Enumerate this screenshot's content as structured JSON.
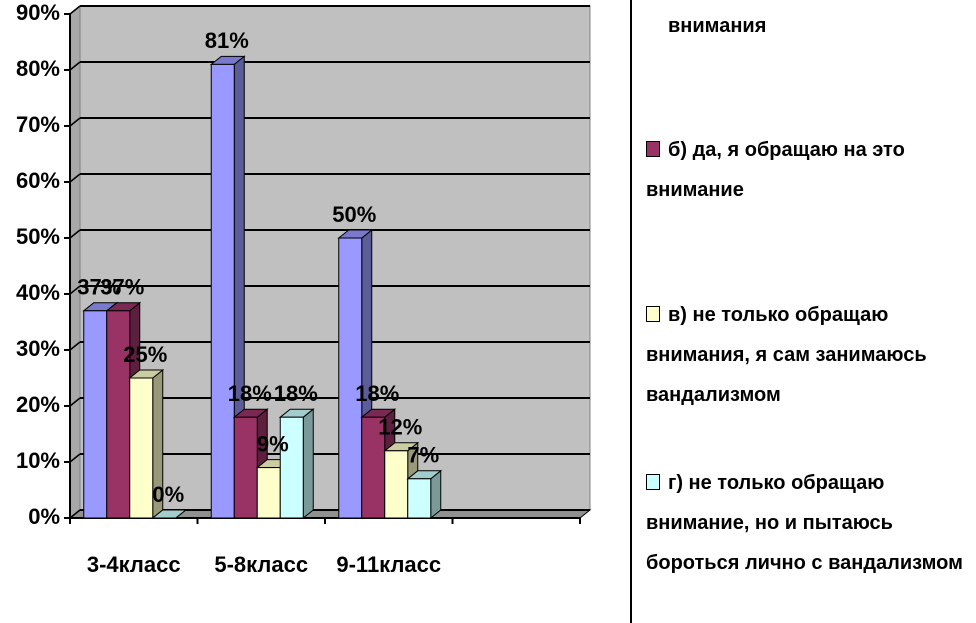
{
  "chart_data": {
    "type": "bar",
    "categories": [
      "3-4класс",
      "5-8класс",
      "9-11класс",
      null
    ],
    "series": [
      {
        "name": "внимания",
        "color": "#9999ff",
        "values": [
          37,
          81,
          50,
          null
        ],
        "value_labels": [
          "37%",
          "81%",
          "50%",
          null
        ]
      },
      {
        "name": "б) да, я обращаю на это внимание",
        "color": "#993366",
        "values": [
          37,
          18,
          18,
          null
        ],
        "value_labels": [
          "37%",
          "18%",
          "18%",
          null
        ]
      },
      {
        "name": "в) не только обращаю внимания, я сам занимаюсь вандализмом",
        "color": "#ffffcc",
        "values": [
          25,
          9,
          12,
          null
        ],
        "value_labels": [
          "25%",
          "9%",
          "12%",
          null
        ]
      },
      {
        "name": "г) не только обращаю внимание, но и пытаюсь бороться лично с вандализмом",
        "color": "#ccffff",
        "values": [
          0,
          18,
          7,
          null
        ],
        "value_labels": [
          "0%",
          "18%",
          "7%",
          null
        ]
      }
    ],
    "ylim": [
      0,
      90
    ],
    "yticks": [
      {
        "value": 0,
        "label": "0%"
      },
      {
        "value": 10,
        "label": "10%"
      },
      {
        "value": 20,
        "label": "20%"
      },
      {
        "value": 30,
        "label": "30%"
      },
      {
        "value": 40,
        "label": "40%"
      },
      {
        "value": 50,
        "label": "50%"
      },
      {
        "value": 60,
        "label": "60%"
      },
      {
        "value": 70,
        "label": "70%"
      },
      {
        "value": 80,
        "label": "80%"
      },
      {
        "value": 90,
        "label": "90%"
      }
    ],
    "grid": true
  }
}
